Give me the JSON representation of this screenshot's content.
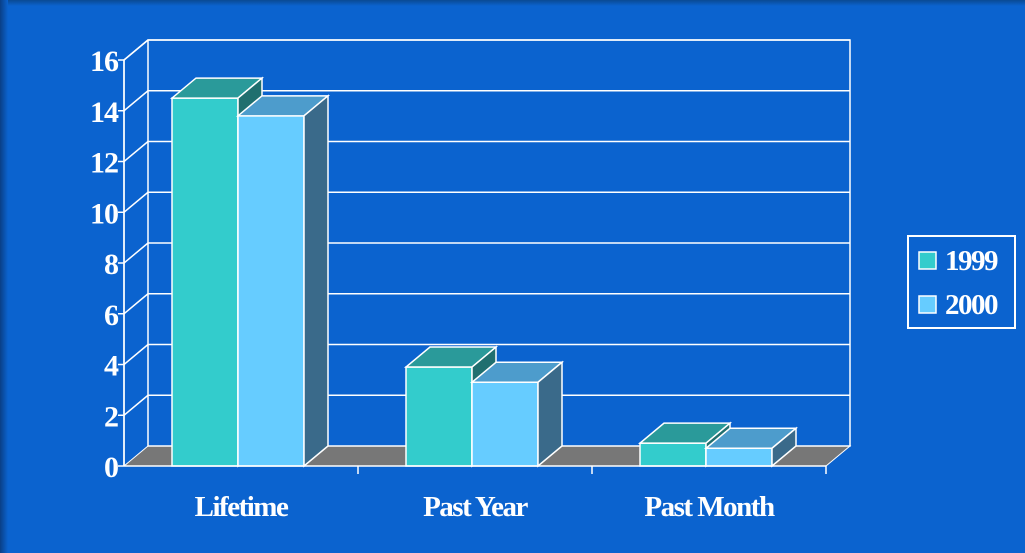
{
  "chart_data": {
    "type": "bar",
    "categories": [
      "Lifetime",
      "Past Year",
      "Past Month"
    ],
    "series": [
      {
        "name": "1999",
        "values": [
          14.5,
          3.9,
          0.9
        ]
      },
      {
        "name": "2000",
        "values": [
          13.8,
          3.3,
          0.7
        ]
      }
    ],
    "ylim": [
      0,
      16
    ],
    "yticks": [
      "0",
      "2",
      "4",
      "6",
      "8",
      "10",
      "12",
      "14",
      "16"
    ],
    "grid": true,
    "legend_position": "right",
    "colors": {
      "series": [
        "#33cccc",
        "#66ccff"
      ],
      "series_top": [
        "#2a9a9a",
        "#4d9ccc"
      ],
      "series_side": [
        "#206f6f",
        "#3a6a8a"
      ],
      "floor": "#777777",
      "lines": "#ffffff",
      "background": "#0b63cf"
    }
  }
}
